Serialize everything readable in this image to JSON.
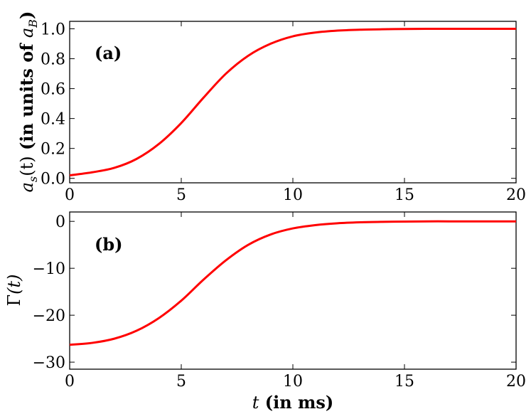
{
  "chart_data": [
    {
      "type": "line",
      "panel_label": "(a)",
      "ylabel": {
        "symbol": "a",
        "sub": "s",
        "arg": "(t)",
        "text": " (in units of ",
        "unit_symbol": "a",
        "unit_sub": "B",
        "close": ")"
      },
      "xlim": [
        0,
        20
      ],
      "ylim": [
        -0.03,
        1.05
      ],
      "xticks": [
        0,
        5,
        10,
        15,
        20
      ],
      "yticks": [
        0.0,
        0.2,
        0.4,
        0.6,
        0.8,
        1.0
      ],
      "ytick_labels": [
        "0.0",
        "0.2",
        "0.4",
        "0.6",
        "0.8",
        "1.0"
      ],
      "grid": false,
      "color": "#ff0000",
      "series": [
        {
          "x": [
            0,
            1,
            2,
            3,
            4,
            5,
            6,
            7,
            8,
            9,
            10,
            11,
            12,
            13,
            14,
            15,
            16,
            17,
            18,
            19,
            20
          ],
          "values": [
            0.02,
            0.04,
            0.07,
            0.13,
            0.23,
            0.37,
            0.54,
            0.7,
            0.82,
            0.9,
            0.95,
            0.975,
            0.988,
            0.994,
            0.997,
            0.999,
            1.0,
            1.0,
            1.0,
            1.0,
            1.0
          ]
        }
      ]
    },
    {
      "type": "line",
      "panel_label": "(b)",
      "ylabel": {
        "symbol": "Γ",
        "arg": "(t)"
      },
      "xlabel": {
        "symbol": "t",
        "text": " (in ms)"
      },
      "xlim": [
        0,
        20
      ],
      "ylim": [
        -31.5,
        2
      ],
      "xticks": [
        0,
        5,
        10,
        15,
        20
      ],
      "yticks": [
        -30,
        -20,
        -10,
        0
      ],
      "ytick_labels": [
        "−30",
        "−20",
        "−10",
        "0"
      ],
      "grid": false,
      "color": "#ff0000",
      "series": [
        {
          "x": [
            0,
            1,
            2,
            3,
            4,
            5,
            6,
            7,
            8,
            9,
            10,
            11,
            12,
            13,
            14,
            15,
            16,
            17,
            18,
            19,
            20
          ],
          "values": [
            -26.3,
            -25.9,
            -25.0,
            -23.3,
            -20.6,
            -16.9,
            -12.4,
            -8.3,
            -5.0,
            -2.8,
            -1.5,
            -0.8,
            -0.4,
            -0.2,
            -0.1,
            -0.05,
            0,
            0,
            0,
            0,
            0
          ]
        }
      ]
    }
  ]
}
